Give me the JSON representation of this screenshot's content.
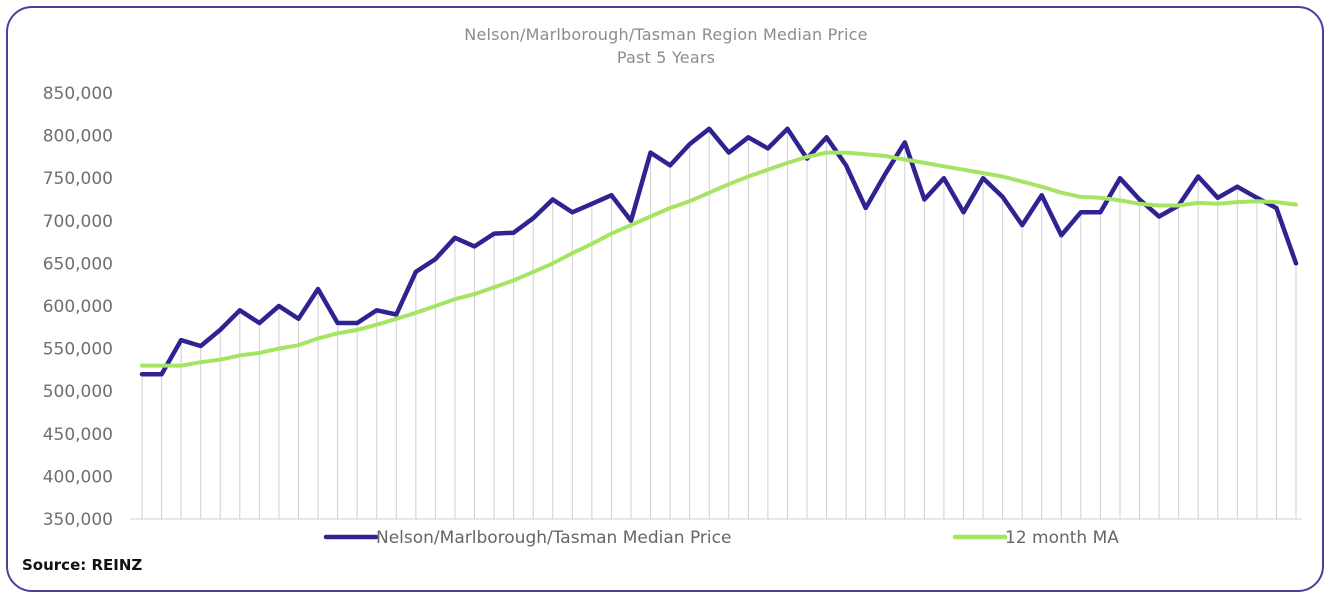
{
  "chart_data": {
    "type": "line",
    "title": "Nelson/Marlborough/Tasman Region Median Price",
    "subtitle": "Past 5 Years",
    "ylim": [
      350000,
      850000
    ],
    "y_ticks": [
      "350,000",
      "400,000",
      "450,000",
      "500,000",
      "550,000",
      "600,000",
      "650,000",
      "700,000",
      "750,000",
      "800,000",
      "850,000"
    ],
    "y_tick_values": [
      350000,
      400000,
      450000,
      500000,
      550000,
      600000,
      650000,
      700000,
      750000,
      800000,
      850000
    ],
    "grid": "vertical drop lines at each month",
    "legend_position": "bottom",
    "series": [
      {
        "name": "Nelson/Marlborough/Tasman Median Price",
        "color": "#2e2391",
        "values": [
          520000,
          520000,
          560000,
          553000,
          572000,
          595000,
          580000,
          600000,
          585000,
          620000,
          580000,
          580000,
          595000,
          590000,
          640000,
          655000,
          680000,
          670000,
          685000,
          686000,
          703000,
          725000,
          710000,
          720000,
          730000,
          700000,
          780000,
          765000,
          790000,
          808000,
          780000,
          798000,
          785000,
          808000,
          773000,
          798000,
          765000,
          715000,
          755000,
          792000,
          725000,
          750000,
          710000,
          750000,
          728000,
          695000,
          730000,
          683000,
          710000,
          710000,
          750000,
          725000,
          705000,
          718000,
          752000,
          727000,
          740000,
          727000,
          715000,
          650000
        ]
      },
      {
        "name": "12 month MA",
        "color": "#a6e463",
        "values": [
          530000,
          530000,
          530000,
          534000,
          537000,
          542000,
          545000,
          550000,
          554000,
          562000,
          568000,
          572000,
          578000,
          585000,
          592000,
          600000,
          608000,
          614000,
          622000,
          630000,
          640000,
          650000,
          662000,
          673000,
          685000,
          695000,
          705000,
          715000,
          723000,
          733000,
          743000,
          752000,
          760000,
          768000,
          775000,
          780000,
          780000,
          778000,
          776000,
          772000,
          768000,
          764000,
          760000,
          756000,
          752000,
          746000,
          740000,
          733000,
          728000,
          727000,
          724000,
          720000,
          718000,
          718000,
          721000,
          720000,
          722000,
          723000,
          722000,
          719000
        ]
      }
    ]
  },
  "footer": {
    "source": "Source: REINZ"
  }
}
